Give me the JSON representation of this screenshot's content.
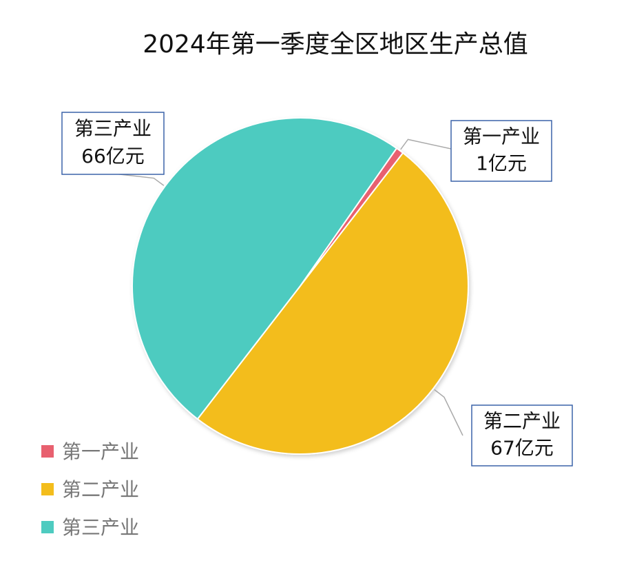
{
  "chart_data": {
    "type": "pie",
    "title": "2024年第一季度全区地区生产总值",
    "categories": [
      "第一产业",
      "第二产业",
      "第三产业"
    ],
    "values": [
      1,
      67,
      66
    ],
    "value_labels": [
      "1亿元",
      "67亿元",
      "66亿元"
    ],
    "colors": [
      "#e8606f",
      "#f3bd1c",
      "#4ecbc0"
    ],
    "legend": "bottom-left"
  }
}
